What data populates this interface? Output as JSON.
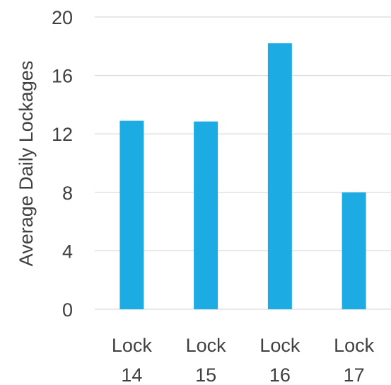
{
  "chart_data": {
    "type": "bar",
    "title": "",
    "xlabel": "",
    "ylabel": "Average Daily Lockages",
    "categories": [
      [
        "Lock",
        "14"
      ],
      [
        "Lock",
        "15"
      ],
      [
        "Lock",
        "16"
      ],
      [
        "Lock",
        "17"
      ]
    ],
    "values": [
      12.9,
      12.85,
      18.2,
      8.0
    ],
    "ylim": [
      0,
      20
    ],
    "yticks": [
      "0",
      "4",
      "8",
      "12",
      "16",
      "20"
    ],
    "grid": true,
    "legend": "none",
    "bar_color": "#1cace3",
    "gridline_color": "#d9d9d9",
    "text_color": "#404040"
  }
}
